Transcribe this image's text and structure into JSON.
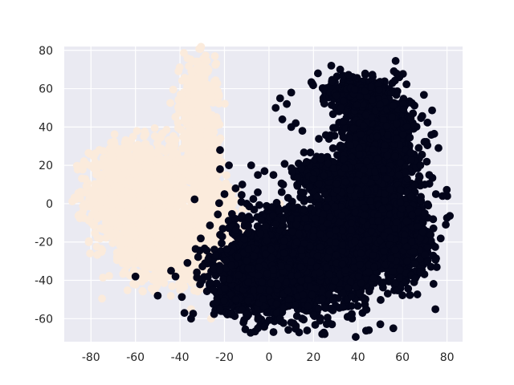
{
  "chart_data": {
    "type": "scatter",
    "title": "",
    "xlabel": "",
    "ylabel": "",
    "xlim": [
      -92,
      87
    ],
    "ylim": [
      -72,
      82
    ],
    "xticks": [
      -80,
      -60,
      -40,
      -20,
      0,
      20,
      40,
      60,
      80
    ],
    "yticks": [
      -60,
      -40,
      -20,
      0,
      20,
      40,
      60,
      80
    ],
    "grid": true,
    "legend": "none",
    "colors": {
      "background": "#eaeaf2",
      "grid": "#ffffff",
      "cluster_a": "#fbebdc",
      "cluster_b": "#03051a"
    },
    "series": [
      {
        "color": "#fbebdc",
        "regions": [
          {
            "cx": -58,
            "cy": 5,
            "rx": 22,
            "ry": 26,
            "n": 1500
          },
          {
            "cx": -45,
            "cy": -22,
            "rx": 20,
            "ry": 18,
            "n": 900
          },
          {
            "cx": -32,
            "cy": 50,
            "rx": 8,
            "ry": 24,
            "n": 450
          },
          {
            "cx": -30,
            "cy": 20,
            "rx": 10,
            "ry": 16,
            "n": 300
          },
          {
            "cx": -25,
            "cy": -5,
            "rx": 10,
            "ry": 16,
            "n": 400
          }
        ],
        "points": [
          [
            -60,
            -37
          ],
          [
            -55,
            -37
          ],
          [
            -46,
            -38
          ],
          [
            -38,
            -40
          ],
          [
            -26,
            -60
          ],
          [
            -35,
            -55
          ],
          [
            -70,
            32
          ],
          [
            -62,
            33
          ],
          [
            5,
            0
          ],
          [
            -19,
            -34
          ],
          [
            -25,
            -30
          ],
          [
            -40,
            -45
          ]
        ]
      },
      {
        "color": "#03051a",
        "regions": [
          {
            "cx": 15,
            "cy": -28,
            "rx": 30,
            "ry": 28,
            "n": 1800
          },
          {
            "cx": 45,
            "cy": -5,
            "rx": 22,
            "ry": 35,
            "n": 1500
          },
          {
            "cx": 50,
            "cy": 35,
            "rx": 15,
            "ry": 25,
            "n": 900
          },
          {
            "cx": 38,
            "cy": 58,
            "rx": 14,
            "ry": 8,
            "n": 350
          },
          {
            "cx": -5,
            "cy": -40,
            "rx": 20,
            "ry": 18,
            "n": 800
          },
          {
            "cx": 60,
            "cy": -20,
            "rx": 12,
            "ry": 18,
            "n": 600
          },
          {
            "cx": 25,
            "cy": 15,
            "rx": 12,
            "ry": 8,
            "n": 300
          }
        ],
        "points": [
          [
            5,
            55
          ],
          [
            8,
            52
          ],
          [
            3,
            50
          ],
          [
            10,
            58
          ],
          [
            6,
            44
          ],
          [
            12,
            42
          ],
          [
            15,
            38
          ],
          [
            10,
            40
          ],
          [
            22,
            68
          ],
          [
            28,
            72
          ],
          [
            32,
            70
          ],
          [
            78,
            4
          ],
          [
            75,
            5
          ],
          [
            70,
            -5
          ],
          [
            -5,
            -65
          ],
          [
            5,
            -60
          ],
          [
            10,
            -62
          ],
          [
            15,
            -60
          ],
          [
            20,
            -58
          ],
          [
            -15,
            -50
          ],
          [
            -25,
            -45
          ],
          [
            -38,
            -57
          ],
          [
            -35,
            -60
          ],
          [
            -50,
            -48
          ],
          [
            -22,
            28
          ],
          [
            -18,
            20
          ],
          [
            -22,
            18
          ],
          [
            -8,
            20
          ],
          [
            -5,
            15
          ],
          [
            -12,
            10
          ],
          [
            -15,
            8
          ],
          [
            -20,
            5
          ],
          [
            -10,
            0
          ],
          [
            -2,
            17
          ],
          [
            2,
            15
          ],
          [
            68,
            20
          ],
          [
            72,
            15
          ],
          [
            70,
            10
          ],
          [
            -60,
            -38
          ],
          [
            -44,
            -35
          ],
          [
            -42,
            -38
          ],
          [
            -30,
            -40
          ],
          [
            -25,
            -45
          ],
          [
            -22,
            -55
          ],
          [
            65,
            -25
          ],
          [
            62,
            -30
          ]
        ]
      }
    ]
  }
}
